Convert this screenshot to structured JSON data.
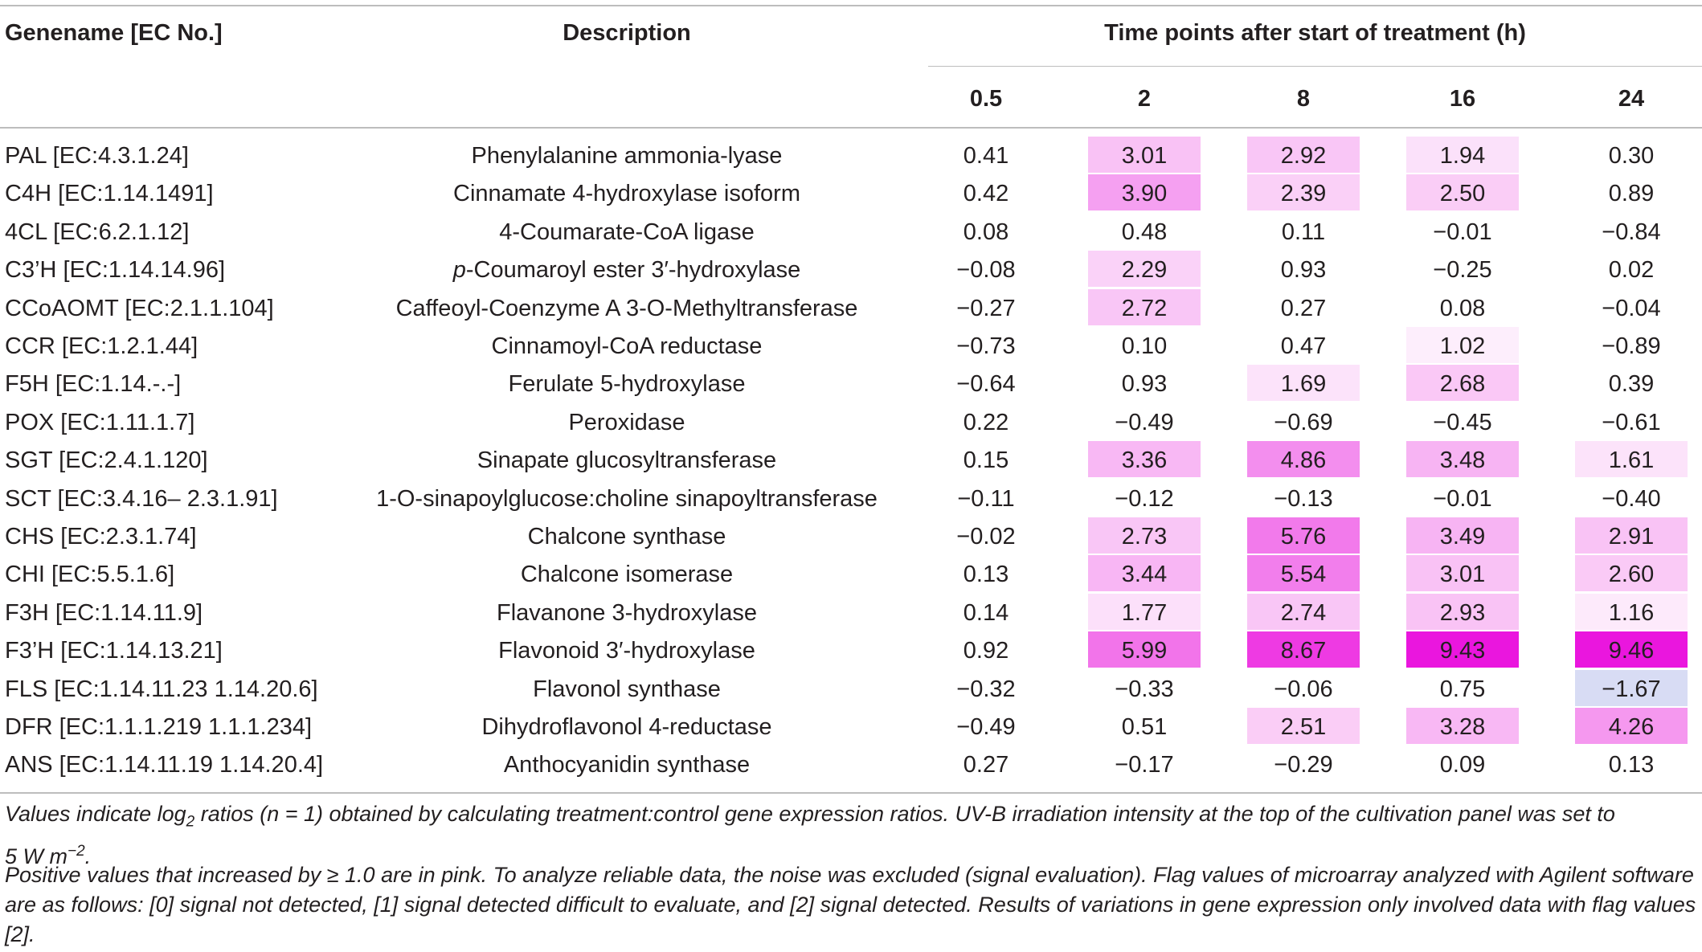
{
  "headers": {
    "gene": "Genename [EC No.]",
    "description": "Description",
    "time_group": "Time points after start of treatment (h)",
    "timepoints": [
      "0.5",
      "2",
      "8",
      "16",
      "24"
    ]
  },
  "rows": [
    {
      "gene": "PAL [EC:4.3.1.24]",
      "desc_prefix": "",
      "desc": "Phenylalanine ammonia-lyase",
      "values": [
        "0.41",
        "3.01",
        "2.92",
        "1.94",
        "0.30"
      ],
      "colors": [
        "",
        "#f9c2f5",
        "#f9c6f6",
        "#fbe1fa",
        ""
      ]
    },
    {
      "gene": "C4H [EC:1.14.1491]",
      "desc_prefix": "",
      "desc": "Cinnamate 4-hydroxylase isoform",
      "values": [
        "0.42",
        "3.90",
        "2.39",
        "2.50",
        "0.89"
      ],
      "colors": [
        "",
        "#f5a0f1",
        "#fad0f7",
        "#facdf6",
        ""
      ]
    },
    {
      "gene": "4CL [EC:6.2.1.12]",
      "desc_prefix": "",
      "desc": "4-Coumarate-CoA ligase",
      "values": [
        "0.08",
        "0.48",
        "0.11",
        "−0.01",
        "−0.84"
      ],
      "colors": [
        "",
        "",
        "",
        "",
        ""
      ]
    },
    {
      "gene": "C3’H [EC:1.14.14.96]",
      "desc_prefix": "p",
      "desc": "-Coumaroyl ester 3′-hydroxylase",
      "values": [
        "−0.08",
        "2.29",
        "0.93",
        "−0.25",
        "0.02"
      ],
      "colors": [
        "",
        "#fad2f8",
        "",
        "",
        ""
      ]
    },
    {
      "gene": "CCoAOMT [EC:2.1.1.104]",
      "desc_prefix": "",
      "desc": "Caffeoyl-Coenzyme A 3-O-Methyltransferase",
      "values": [
        "−0.27",
        "2.72",
        "0.27",
        "0.08",
        "−0.04"
      ],
      "colors": [
        "",
        "#f9c6f6",
        "",
        "",
        ""
      ]
    },
    {
      "gene": "CCR [EC:1.2.1.44]",
      "desc_prefix": "",
      "desc": "Cinnamoyl-CoA reductase",
      "values": [
        "−0.73",
        "0.10",
        "0.47",
        "1.02",
        "−0.89"
      ],
      "colors": [
        "",
        "",
        "",
        "#fdeefc",
        ""
      ]
    },
    {
      "gene": "F5H [EC:1.14.-.-]",
      "desc_prefix": "",
      "desc": "Ferulate 5-hydroxylase",
      "values": [
        "−0.64",
        "0.93",
        "1.69",
        "2.68",
        "0.39"
      ],
      "colors": [
        "",
        "",
        "#fce3fa",
        "#fac8f6",
        ""
      ]
    },
    {
      "gene": "POX [EC:1.11.1.7]",
      "desc_prefix": "",
      "desc": "Peroxidase",
      "values": [
        "0.22",
        "−0.49",
        "−0.69",
        "−0.45",
        "−0.61"
      ],
      "colors": [
        "",
        "",
        "",
        "",
        ""
      ]
    },
    {
      "gene": "SGT [EC:2.4.1.120]",
      "desc_prefix": "",
      "desc": "Sinapate glucosyltransferase",
      "values": [
        "0.15",
        "3.36",
        "4.86",
        "3.48",
        "1.61"
      ],
      "colors": [
        "",
        "#f8b8f4",
        "#f38eee",
        "#f7b4f3",
        "#fce3fa"
      ]
    },
    {
      "gene": "SCT [EC:3.4.16– 2.3.1.91]",
      "desc_prefix": "",
      "desc": "1-O-sinapoylglucose:choline sinapoyltransferase",
      "values": [
        "−0.11",
        "−0.12",
        "−0.13",
        "−0.01",
        "−0.40"
      ],
      "colors": [
        "",
        "",
        "",
        "",
        ""
      ]
    },
    {
      "gene": "CHS [EC:2.3.1.74]",
      "desc_prefix": "",
      "desc": "Chalcone synthase",
      "values": [
        "−0.02",
        "2.73",
        "5.76",
        "3.49",
        "2.91"
      ],
      "colors": [
        "",
        "#f9c6f6",
        "#f27aeb",
        "#f7b4f3",
        "#f9c3f5"
      ]
    },
    {
      "gene": "CHI [EC:5.5.1.6]",
      "desc_prefix": "",
      "desc": "Chalcone isomerase",
      "values": [
        "0.13",
        "3.44",
        "5.54",
        "3.01",
        "2.60"
      ],
      "colors": [
        "",
        "#f8b6f4",
        "#f27eec",
        "#f9c2f5",
        "#facaf6"
      ]
    },
    {
      "gene": "F3H [EC:1.14.11.9]",
      "desc_prefix": "",
      "desc": "Flavanone 3-hydroxylase",
      "values": [
        "0.14",
        "1.77",
        "2.74",
        "2.93",
        "1.16"
      ],
      "colors": [
        "",
        "#fce0fa",
        "#f9c6f6",
        "#f9c3f5",
        "#fdeafb"
      ]
    },
    {
      "gene": "F3’H [EC:1.14.13.21]",
      "desc_prefix": "",
      "desc": "Flavonoid 3′-hydroxylase",
      "values": [
        "0.92",
        "5.99",
        "8.67",
        "9.43",
        "9.46"
      ],
      "colors": [
        "",
        "#f274ea",
        "#ee3ae3",
        "#ea16de",
        "#ea16de"
      ]
    },
    {
      "gene": "FLS [EC:1.14.11.23 1.14.20.6]",
      "desc_prefix": "",
      "desc": "Flavonol synthase",
      "values": [
        "−0.32",
        "−0.33",
        "−0.06",
        "0.75",
        "−1.67"
      ],
      "colors": [
        "",
        "",
        "",
        "",
        "#d8dcf4"
      ]
    },
    {
      "gene": "DFR [EC:1.1.1.219 1.1.1.234]",
      "desc_prefix": "",
      "desc": "Dihydroflavonol 4-reductase",
      "values": [
        "−0.49",
        "0.51",
        "2.51",
        "3.28",
        "4.26"
      ],
      "colors": [
        "",
        "",
        "#facdf6",
        "#f8b8f4",
        "#f598ef"
      ]
    },
    {
      "gene": "ANS [EC:1.14.11.19 1.14.20.4]",
      "desc_prefix": "",
      "desc": "Anthocyanidin synthase",
      "values": [
        "0.27",
        "−0.17",
        "−0.29",
        "0.09",
        "0.13"
      ],
      "colors": [
        "",
        "",
        "",
        "",
        ""
      ]
    }
  ],
  "footnote": {
    "line1_pre": "Values indicate log",
    "line1_sub": "2",
    "line1_post": " ratios (n = 1) obtained by calculating treatment:control gene expression ratios. UV-B irradiation intensity at the top of the cultivation panel was set to",
    "line2_pre": "5 W m",
    "line2_sup": "−2",
    "line2_post": ".",
    "para2": "Positive values that increased by ≥ 1.0 are in pink. To analyze reliable data, the noise was excluded (signal evaluation). Flag values of microarray analyzed with Agilent software are as follows: [0] signal not detected, [1] signal detected difficult to evaluate, and [2] signal detected. Results of variations in gene expression only involved data with flag values [2]."
  }
}
